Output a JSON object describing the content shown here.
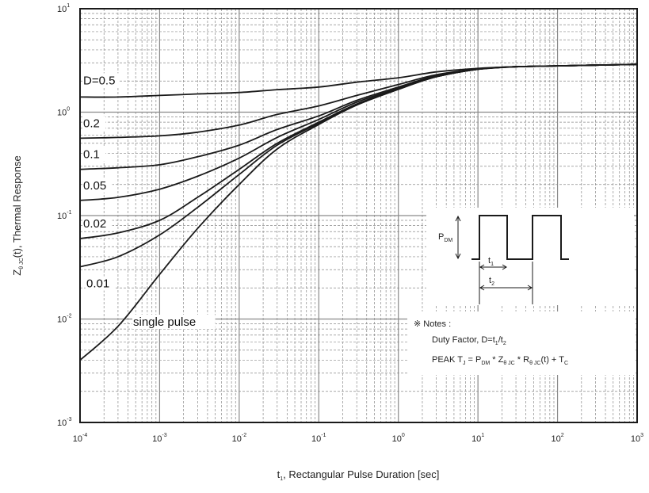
{
  "chart_data": {
    "type": "line",
    "title": "",
    "xlabel": "Rectangular Pulse Duration [sec]",
    "xlabel_symbol": "t",
    "xlabel_symbol_sub": "1",
    "ylabel": "(t), Thermal Response",
    "ylabel_symbol": "Z",
    "ylabel_symbol_sub": "θ JC",
    "x_scale": "log",
    "y_scale": "log",
    "xlim": [
      0.0001,
      1000
    ],
    "ylim": [
      0.001,
      10
    ],
    "grid": true,
    "x_tick_labels": [
      {
        "base": "10",
        "exp": "-4"
      },
      {
        "base": "10",
        "exp": "-3"
      },
      {
        "base": "10",
        "exp": "-2"
      },
      {
        "base": "10",
        "exp": "-1"
      },
      {
        "base": "10",
        "exp": "0"
      },
      {
        "base": "10",
        "exp": "1"
      },
      {
        "base": "10",
        "exp": "2"
      },
      {
        "base": "10",
        "exp": "3"
      }
    ],
    "y_tick_labels": [
      {
        "base": "10",
        "exp": "-3"
      },
      {
        "base": "10",
        "exp": "-2"
      },
      {
        "base": "10",
        "exp": "-1"
      },
      {
        "base": "10",
        "exp": "0"
      },
      {
        "base": "10",
        "exp": "1"
      }
    ],
    "x": [
      0.0001,
      0.0003,
      0.001,
      0.003,
      0.01,
      0.03,
      0.1,
      0.3,
      1,
      3,
      10,
      30,
      100,
      1000
    ],
    "series": [
      {
        "name": "D=0.5",
        "label_position": "left",
        "values": [
          1.4,
          1.4,
          1.45,
          1.5,
          1.55,
          1.65,
          1.75,
          1.95,
          2.15,
          2.45,
          2.65,
          2.75,
          2.8,
          2.9
        ]
      },
      {
        "name": "0.2",
        "label_position": "left",
        "values": [
          0.56,
          0.57,
          0.59,
          0.64,
          0.75,
          0.95,
          1.15,
          1.45,
          1.85,
          2.3,
          2.6,
          2.75,
          2.8,
          2.9
        ]
      },
      {
        "name": "0.1",
        "label_position": "left",
        "values": [
          0.28,
          0.29,
          0.31,
          0.37,
          0.48,
          0.68,
          0.92,
          1.3,
          1.75,
          2.25,
          2.6,
          2.75,
          2.8,
          2.9
        ]
      },
      {
        "name": "0.05",
        "label_position": "left",
        "values": [
          0.14,
          0.15,
          0.18,
          0.24,
          0.36,
          0.57,
          0.85,
          1.25,
          1.7,
          2.2,
          2.6,
          2.75,
          2.8,
          2.9
        ]
      },
      {
        "name": "0.02",
        "label_position": "left",
        "values": [
          0.06,
          0.068,
          0.09,
          0.15,
          0.28,
          0.5,
          0.8,
          1.2,
          1.68,
          2.2,
          2.6,
          2.75,
          2.8,
          2.9
        ]
      },
      {
        "name": "0.01",
        "label_position": "left",
        "values": [
          0.032,
          0.04,
          0.065,
          0.12,
          0.25,
          0.48,
          0.78,
          1.18,
          1.67,
          2.2,
          2.6,
          2.75,
          2.8,
          2.9
        ]
      },
      {
        "name": "single pulse",
        "label_position": "curve",
        "values": [
          0.004,
          0.0085,
          0.027,
          0.075,
          0.2,
          0.44,
          0.76,
          1.17,
          1.66,
          2.2,
          2.6,
          2.75,
          2.8,
          2.9
        ]
      }
    ],
    "inset": {
      "pdm_label": "P",
      "pdm_sub": "DM",
      "t1_label": "t",
      "t1_sub": "1",
      "t2_label": "t",
      "t2_sub": "2"
    },
    "notes": {
      "header": "※ Notes :",
      "line1_prefix": "Duty Factor, D=t",
      "line1_sub1": "1",
      "line1_mid": "/t",
      "line1_sub2": "2",
      "line2_a": "PEAK T",
      "line2_a_sub": "J",
      "line2_b": " = P",
      "line2_b_sub": "DM",
      "line2_c": " * Z",
      "line2_c_sub": "θ JC",
      "line2_d": " * R",
      "line2_d_sub": "θ JC",
      "line2_e": "(t) + T",
      "line2_e_sub": "C"
    },
    "colors": {
      "curve": "#1a1a1a",
      "grid": "#8a8a8a",
      "frame": "#1a1a1a"
    }
  }
}
